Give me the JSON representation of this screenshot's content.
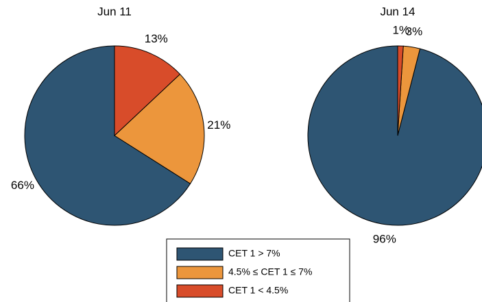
{
  "legend": {
    "labels": [
      "CET 1 > 7%",
      "4.5% ≤ CET 1  ≤ 7%",
      "CET 1 < 4.5%"
    ],
    "colors": [
      "#2e5573",
      "#ec963c",
      "#d84c2a"
    ]
  },
  "chart_data": [
    {
      "type": "pie",
      "title": "Jun 11",
      "values": [
        66,
        21,
        13
      ],
      "value_labels": [
        "66%",
        "21%",
        "13%"
      ]
    },
    {
      "type": "pie",
      "title": "Jun 14",
      "values": [
        96,
        3,
        1
      ],
      "value_labels": [
        "96%",
        "3%",
        "1%"
      ]
    }
  ]
}
